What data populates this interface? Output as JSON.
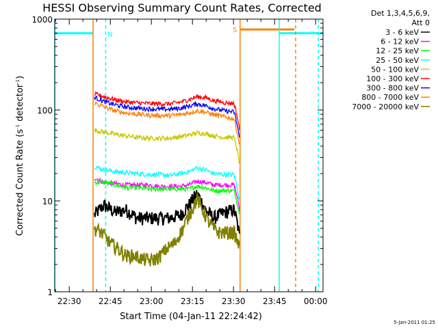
{
  "chart_data": {
    "type": "line",
    "title": "HESSI Observing Summary Count Rates, Corrected",
    "xlabel": "Start Time (04-Jan-11 22:24:42)",
    "ylabel_main": "Corrected Count Rate (s",
    "ylabel_sup1": "-1",
    "ylabel_mid": " detector",
    "ylabel_sup2": "-1",
    "ylabel_end": ")",
    "y_scale": "log",
    "ylim": [
      1,
      1000
    ],
    "y_ticks": [
      {
        "value": 1,
        "label": "1"
      },
      {
        "value": 10,
        "label": "10"
      },
      {
        "value": 100,
        "label": "100"
      },
      {
        "value": 1000,
        "label": "1000"
      }
    ],
    "x_unit": "minutes after 22:24:42",
    "xlim": [
      0,
      98
    ],
    "x_ticks": [
      {
        "value": 5.3,
        "label": "22:30"
      },
      {
        "value": 20.3,
        "label": "22:45"
      },
      {
        "value": 35.3,
        "label": "23:00"
      },
      {
        "value": 50.3,
        "label": "23:15"
      },
      {
        "value": 65.3,
        "label": "23:30"
      },
      {
        "value": 80.3,
        "label": "23:45"
      },
      {
        "value": 95.3,
        "label": "00:00"
      }
    ],
    "legend": {
      "placement": "right",
      "header": "Det 1,3,4,5,6,9,",
      "subheader": "Att 0"
    },
    "series": [
      {
        "name": "3 - 6 keV",
        "color": "#000000",
        "x": [
          14.5,
          18,
          22,
          26,
          30,
          34,
          38,
          42,
          46,
          49,
          52,
          55,
          58,
          62,
          65.5,
          67.5
        ],
        "values": [
          7,
          9,
          7.5,
          8,
          6.5,
          6.5,
          6.5,
          6.5,
          7,
          9,
          12,
          8,
          6.5,
          7.5,
          8,
          4
        ]
      },
      {
        "name": "6 - 12 keV",
        "color": "#ff00ff",
        "x": [
          14.5,
          18,
          22,
          26,
          30,
          34,
          38,
          42,
          46,
          49,
          52,
          55,
          58,
          62,
          65.5,
          67.5
        ],
        "values": [
          18,
          16,
          15.5,
          15,
          15,
          15,
          14.5,
          14.5,
          14.5,
          15,
          16.5,
          16,
          15,
          15,
          15,
          8
        ]
      },
      {
        "name": "12 - 25 keV",
        "color": "#00ff00",
        "x": [
          14.5,
          18,
          22,
          26,
          30,
          34,
          38,
          42,
          46,
          49,
          52,
          55,
          58,
          62,
          65.5,
          67.5
        ],
        "values": [
          16,
          16,
          15,
          14,
          14,
          13.5,
          13.5,
          13.5,
          13.5,
          13.5,
          14.5,
          14,
          13,
          13,
          13,
          7
        ]
      },
      {
        "name": "25 - 50 keV",
        "color": "#00ffff",
        "x": [
          14.5,
          18,
          22,
          26,
          30,
          34,
          38,
          42,
          46,
          49,
          52,
          55,
          58,
          62,
          65.5,
          67.5
        ],
        "values": [
          24,
          22,
          21,
          20.5,
          20,
          19.5,
          19.5,
          19,
          20,
          21,
          23,
          22,
          20,
          19.5,
          19.5,
          10
        ]
      },
      {
        "name": "50 - 100 keV",
        "color": "#c8c800",
        "x": [
          14.5,
          18,
          22,
          26,
          30,
          34,
          38,
          42,
          46,
          49,
          52,
          55,
          58,
          62,
          65.5,
          67.5
        ],
        "values": [
          60,
          57,
          54,
          52,
          50,
          49,
          49,
          49,
          51,
          53,
          56,
          55,
          52,
          50,
          50,
          25
        ]
      },
      {
        "name": "100 - 300 keV",
        "color": "#ff0000",
        "x": [
          14.5,
          18,
          22,
          26,
          30,
          34,
          38,
          42,
          46,
          49,
          52,
          55,
          58,
          62,
          65.5,
          67.5
        ],
        "values": [
          150,
          140,
          130,
          123,
          120,
          118,
          117,
          117,
          122,
          130,
          140,
          137,
          127,
          121,
          118,
          60
        ]
      },
      {
        "name": "300 - 800 keV",
        "color": "#0000ff",
        "x": [
          14.5,
          18,
          22,
          26,
          30,
          34,
          38,
          42,
          46,
          49,
          52,
          55,
          58,
          62,
          65.5,
          67.5
        ],
        "values": [
          138,
          124,
          114,
          108,
          105,
          103,
          102,
          102,
          105,
          110,
          117,
          112,
          104,
          98,
          95,
          48
        ]
      },
      {
        "name": "800 - 7000 keV",
        "color": "#ff8000",
        "x": [
          14.5,
          18,
          22,
          26,
          30,
          34,
          38,
          42,
          46,
          49,
          52,
          55,
          58,
          62,
          65.5,
          67.5
        ],
        "values": [
          120,
          108,
          98,
          93,
          90,
          88,
          87,
          87,
          89,
          93,
          98,
          95,
          89,
          84,
          80,
          40
        ]
      },
      {
        "name": "7000 - 20000 keV",
        "color": "#808000",
        "x": [
          14.5,
          17,
          20,
          23,
          26,
          29,
          32,
          35,
          38,
          41,
          44,
          47,
          50,
          52,
          54,
          56,
          58,
          60,
          62,
          65.5,
          67.5
        ],
        "values": [
          5,
          4.5,
          3.5,
          3,
          2.5,
          2.5,
          2.3,
          2.2,
          2.4,
          3,
          3.5,
          5,
          8,
          10.5,
          8,
          6,
          5,
          4.5,
          4.5,
          4.5,
          3
        ]
      }
    ],
    "annotations": [
      {
        "type": "step",
        "name": "cyan-flag-level-left",
        "color": "#00ffff",
        "x": [
          0,
          14
        ],
        "value": 700
      },
      {
        "type": "step",
        "name": "cyan-flag-level-right",
        "color": "#00ffff",
        "x": [
          82,
          98
        ],
        "value": 700
      },
      {
        "type": "step",
        "name": "orange-flag-level",
        "color": "#ff8000",
        "x": [
          67.8,
          87.5
        ],
        "value": 770
      },
      {
        "type": "vline",
        "name": "cyan-solid-line-start",
        "color": "#00ffff",
        "x": 0,
        "dashed": false
      },
      {
        "type": "vline",
        "name": "cyan-dashed-line-n",
        "color": "#00ffff",
        "x": 18.6,
        "dashed": true
      },
      {
        "type": "vline",
        "name": "orange-line-data-start",
        "color": "#ff8000",
        "x": 14,
        "dashed": false
      },
      {
        "type": "vline",
        "name": "orange-line-s",
        "color": "#ff8000",
        "x": 67.7,
        "dashed": false
      },
      {
        "type": "vline",
        "name": "cyan-solid-line-2",
        "color": "#00ffff",
        "x": 82,
        "dashed": false
      },
      {
        "type": "vline",
        "name": "orange-dashed-line",
        "color": "#ff8000",
        "x": 88,
        "dashed": true
      },
      {
        "type": "vline",
        "name": "cyan-dashed-line-end",
        "color": "#00ffff",
        "x": 96.3,
        "dashed": true
      },
      {
        "type": "text",
        "name": "label-n",
        "text": "N",
        "color": "#00ffff",
        "x": 20.2,
        "value": 690
      },
      {
        "type": "text",
        "name": "label-s",
        "text": "S",
        "color": "#ff8000",
        "x": 65.8,
        "value": 770
      }
    ],
    "grid": false
  },
  "footer": {
    "date_stamp": "5-Jan-2011 01:25"
  }
}
